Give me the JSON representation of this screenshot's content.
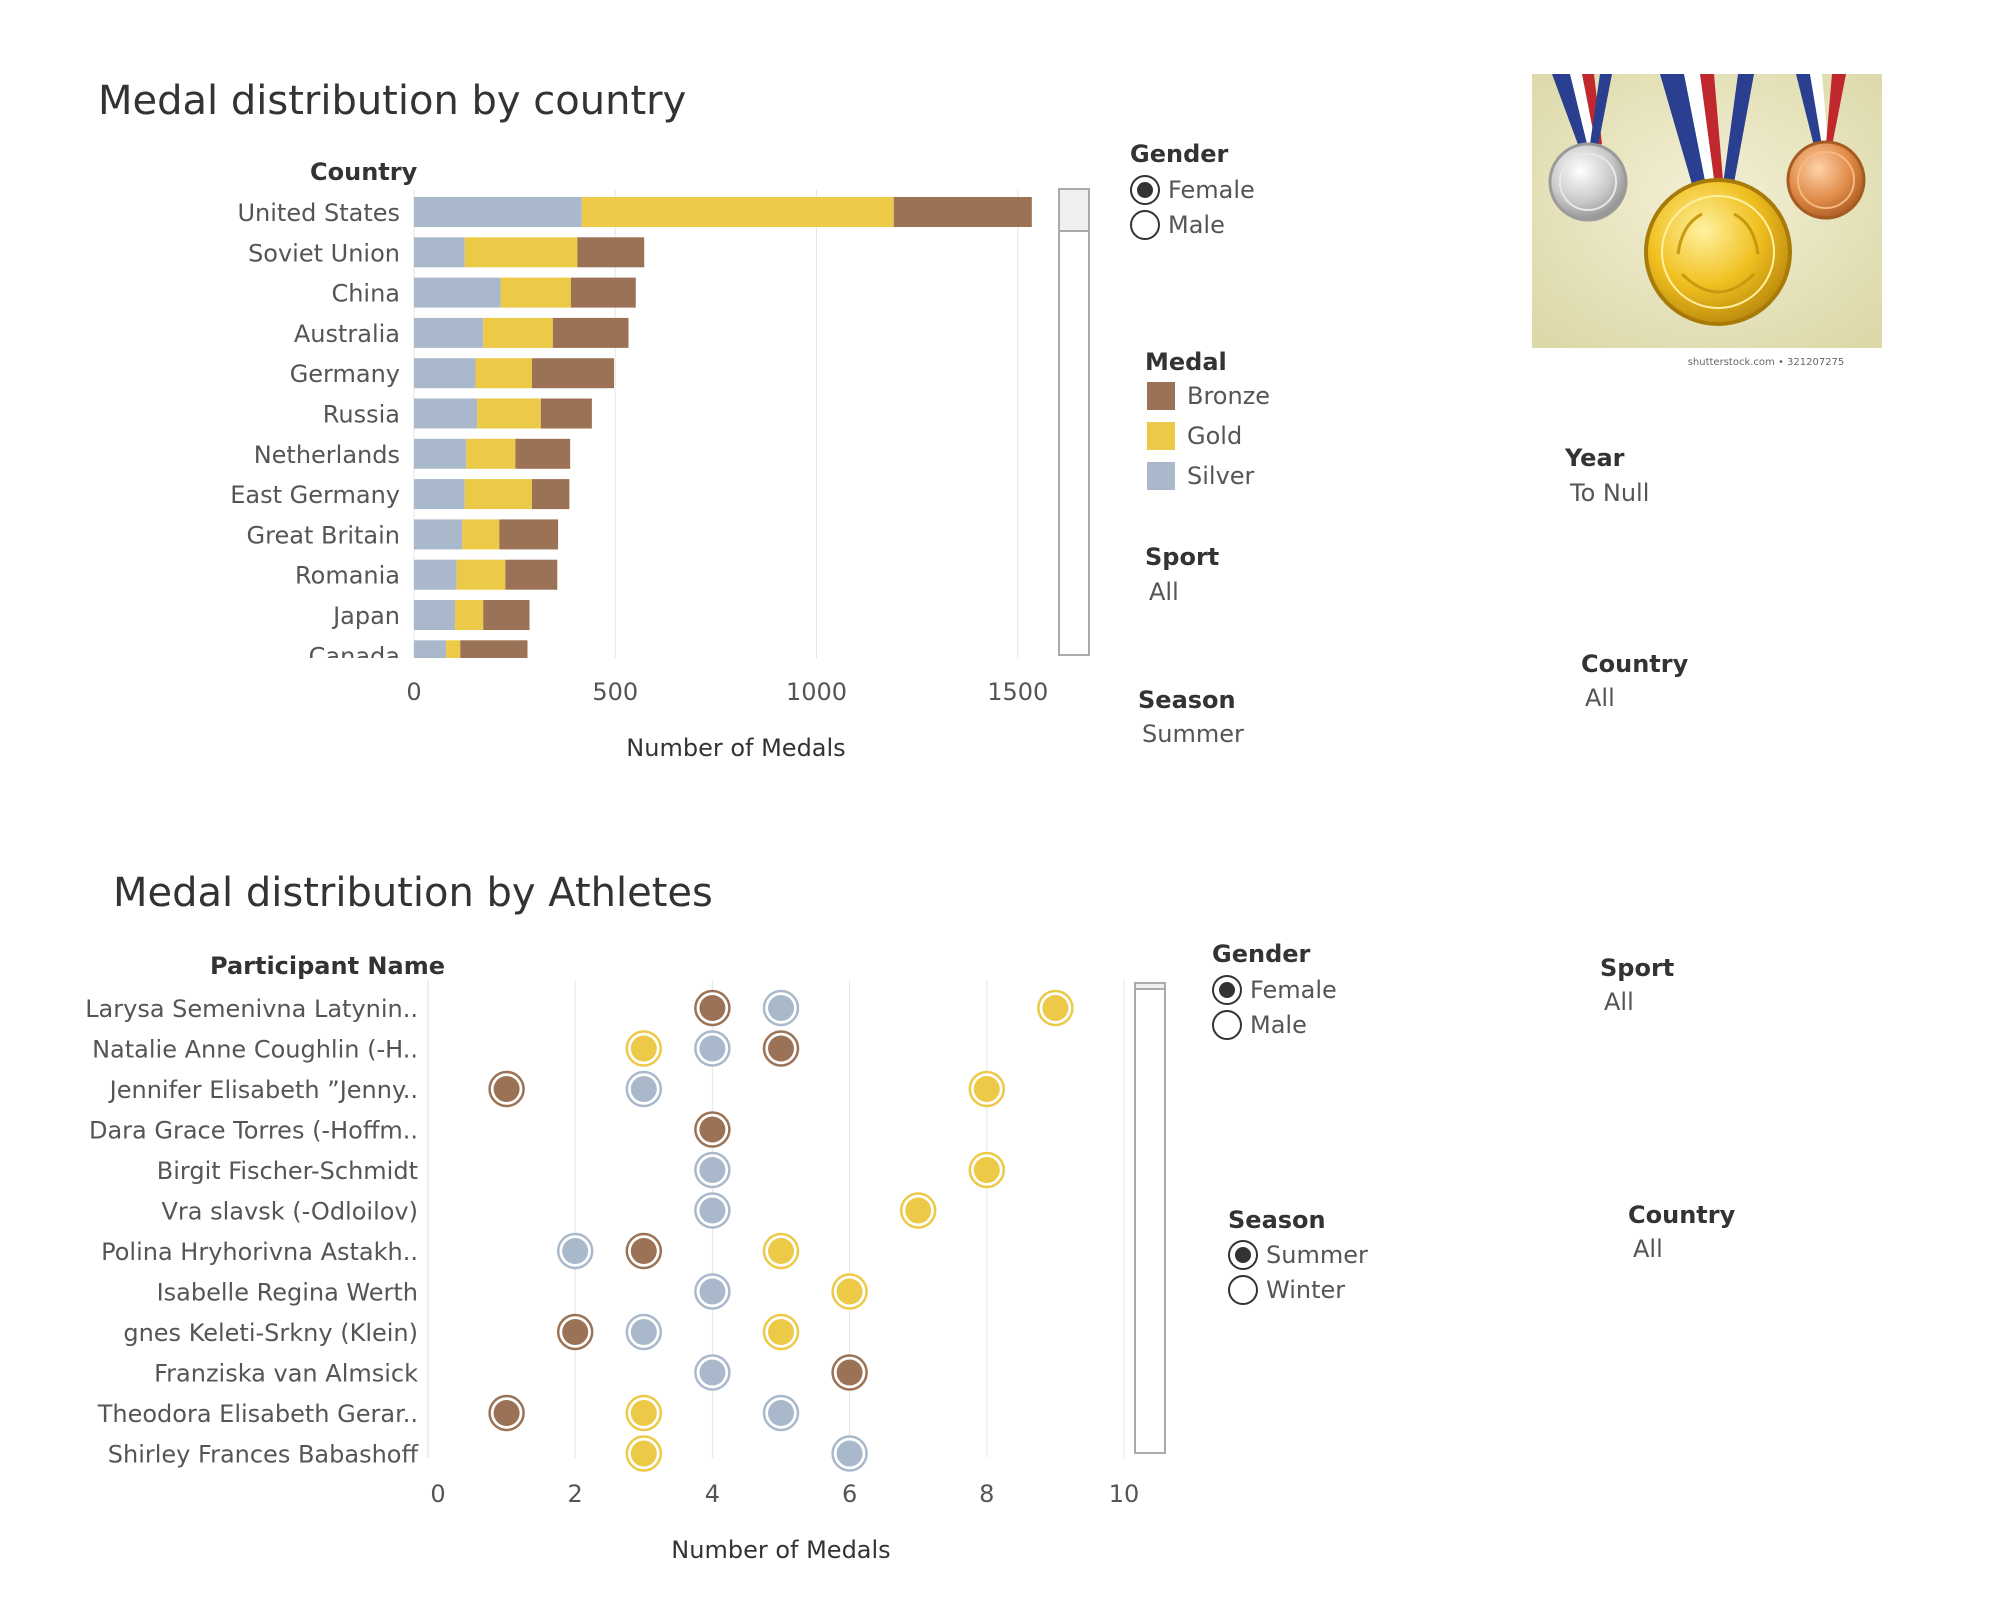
{
  "colors": {
    "bronze": "#9c7256",
    "gold": "#edc948",
    "silver": "#a9b9cb",
    "grid": "#e6e6e6",
    "text": "#555555"
  },
  "country_section": {
    "title": "Medal distribution by country",
    "gender_filter": {
      "title": "Gender",
      "options": [
        "Female",
        "Male"
      ],
      "selected": "Female"
    },
    "medal_legend": {
      "title": "Medal",
      "items": [
        "Bronze",
        "Gold",
        "Silver"
      ]
    },
    "sport_filter": {
      "title": "Sport",
      "value": "All"
    },
    "season_filter": {
      "title": "Season",
      "value": "Summer"
    },
    "year_filter": {
      "title": "Year",
      "value": "To Null"
    },
    "country_filter": {
      "title": "Country",
      "value": "All"
    }
  },
  "athlete_section": {
    "title": "Medal distribution by Athletes",
    "gender_filter": {
      "title": "Gender",
      "options": [
        "Female",
        "Male"
      ],
      "selected": "Female"
    },
    "sport_filter": {
      "title": "Sport",
      "value": "All"
    },
    "season_filter": {
      "title": "Season",
      "options": [
        "Summer",
        "Winter"
      ],
      "selected": "Summer"
    },
    "country_filter": {
      "title": "Country",
      "value": "All"
    }
  },
  "image": {
    "icon": "olympic-medals-image",
    "caption": "shutterstock.com • 321207275"
  },
  "chart_data": [
    {
      "type": "bar",
      "orientation": "horizontal",
      "stacked": true,
      "title": "Medal distribution by country",
      "row_header": "Country",
      "xlabel": "Number of Medals",
      "xlim": [
        0,
        1600
      ],
      "xticks": [
        0,
        500,
        1000,
        1500
      ],
      "grid": true,
      "categories": [
        "United States",
        "Soviet Union",
        "China",
        "Australia",
        "Germany",
        "Russia",
        "Netherlands",
        "East Germany",
        "Great Britain",
        "Romania",
        "Japan",
        "Canada"
      ],
      "series": [
        {
          "name": "Silver",
          "values": [
            417,
            126,
            215,
            172,
            153,
            157,
            130,
            126,
            120,
            106,
            102,
            80
          ]
        },
        {
          "name": "Gold",
          "values": [
            775,
            280,
            175,
            173,
            140,
            158,
            122,
            167,
            92,
            121,
            70,
            35
          ]
        },
        {
          "name": "Bronze",
          "values": [
            343,
            166,
            161,
            188,
            204,
            127,
            136,
            93,
            146,
            129,
            115,
            167
          ]
        }
      ]
    },
    {
      "type": "scatter",
      "title": "Medal distribution by Athletes",
      "row_header": "Participant Name",
      "xlabel": "Number of Medals",
      "xlim": [
        0,
        10
      ],
      "xticks": [
        0,
        2,
        4,
        6,
        8,
        10
      ],
      "grid": true,
      "categories": [
        "Larysa Semenivna Latynin..",
        "Natalie Anne Coughlin (-H..",
        "Jennifer Elisabeth ”Jenny..",
        "Dara Grace Torres (-Hoffm..",
        "Birgit Fischer-Schmidt",
        "Vra slavsk (-Odloilov)",
        "Polina Hryhorivna Astakh..",
        "Isabelle Regina Werth",
        "gnes Keleti-Srkny (Klein)",
        "Franziska van Almsick",
        "Theodora Elisabeth Gerar..",
        "Shirley Frances Babashoff"
      ],
      "series": [
        {
          "name": "Bronze",
          "values": [
            4,
            5,
            1,
            4,
            null,
            null,
            3,
            null,
            2,
            6,
            1,
            null
          ]
        },
        {
          "name": "Gold",
          "values": [
            9,
            3,
            8,
            null,
            8,
            7,
            5,
            6,
            5,
            null,
            3,
            3
          ]
        },
        {
          "name": "Silver",
          "values": [
            5,
            4,
            3,
            null,
            4,
            4,
            2,
            4,
            3,
            4,
            5,
            6
          ]
        }
      ]
    }
  ]
}
